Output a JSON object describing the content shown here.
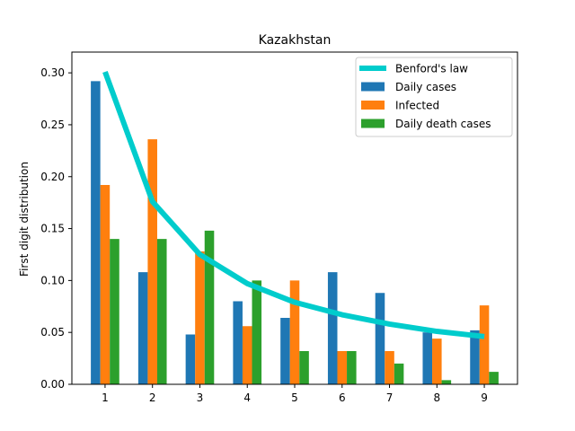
{
  "chart_data": {
    "type": "bar",
    "title": "Kazakhstan",
    "xlabel": "",
    "ylabel": "First digit distribution",
    "categories": [
      "1",
      "2",
      "3",
      "4",
      "5",
      "6",
      "7",
      "8",
      "9"
    ],
    "x": [
      1,
      2,
      3,
      4,
      5,
      6,
      7,
      8,
      9
    ],
    "ylim": [
      0,
      0.32
    ],
    "yticks": [
      "0.00",
      "0.05",
      "0.10",
      "0.15",
      "0.20",
      "0.25",
      "0.30"
    ],
    "grid": false,
    "legend_position": "top-right",
    "series": [
      {
        "name": "Benford's law",
        "kind": "line",
        "color": "#00cccc",
        "values": [
          0.301,
          0.176,
          0.125,
          0.097,
          0.079,
          0.067,
          0.058,
          0.051,
          0.046
        ]
      },
      {
        "name": "Daily cases",
        "kind": "bar",
        "color": "#1f77b4",
        "values": [
          0.292,
          0.108,
          0.048,
          0.08,
          0.064,
          0.108,
          0.088,
          0.05,
          0.052
        ]
      },
      {
        "name": "Infected",
        "kind": "bar",
        "color": "#ff7f0e",
        "values": [
          0.192,
          0.236,
          0.128,
          0.056,
          0.1,
          0.032,
          0.032,
          0.044,
          0.076
        ]
      },
      {
        "name": "Daily death cases",
        "kind": "bar",
        "color": "#2ca02c",
        "values": [
          0.14,
          0.14,
          0.148,
          0.1,
          0.032,
          0.032,
          0.02,
          0.004,
          0.012
        ]
      }
    ]
  }
}
